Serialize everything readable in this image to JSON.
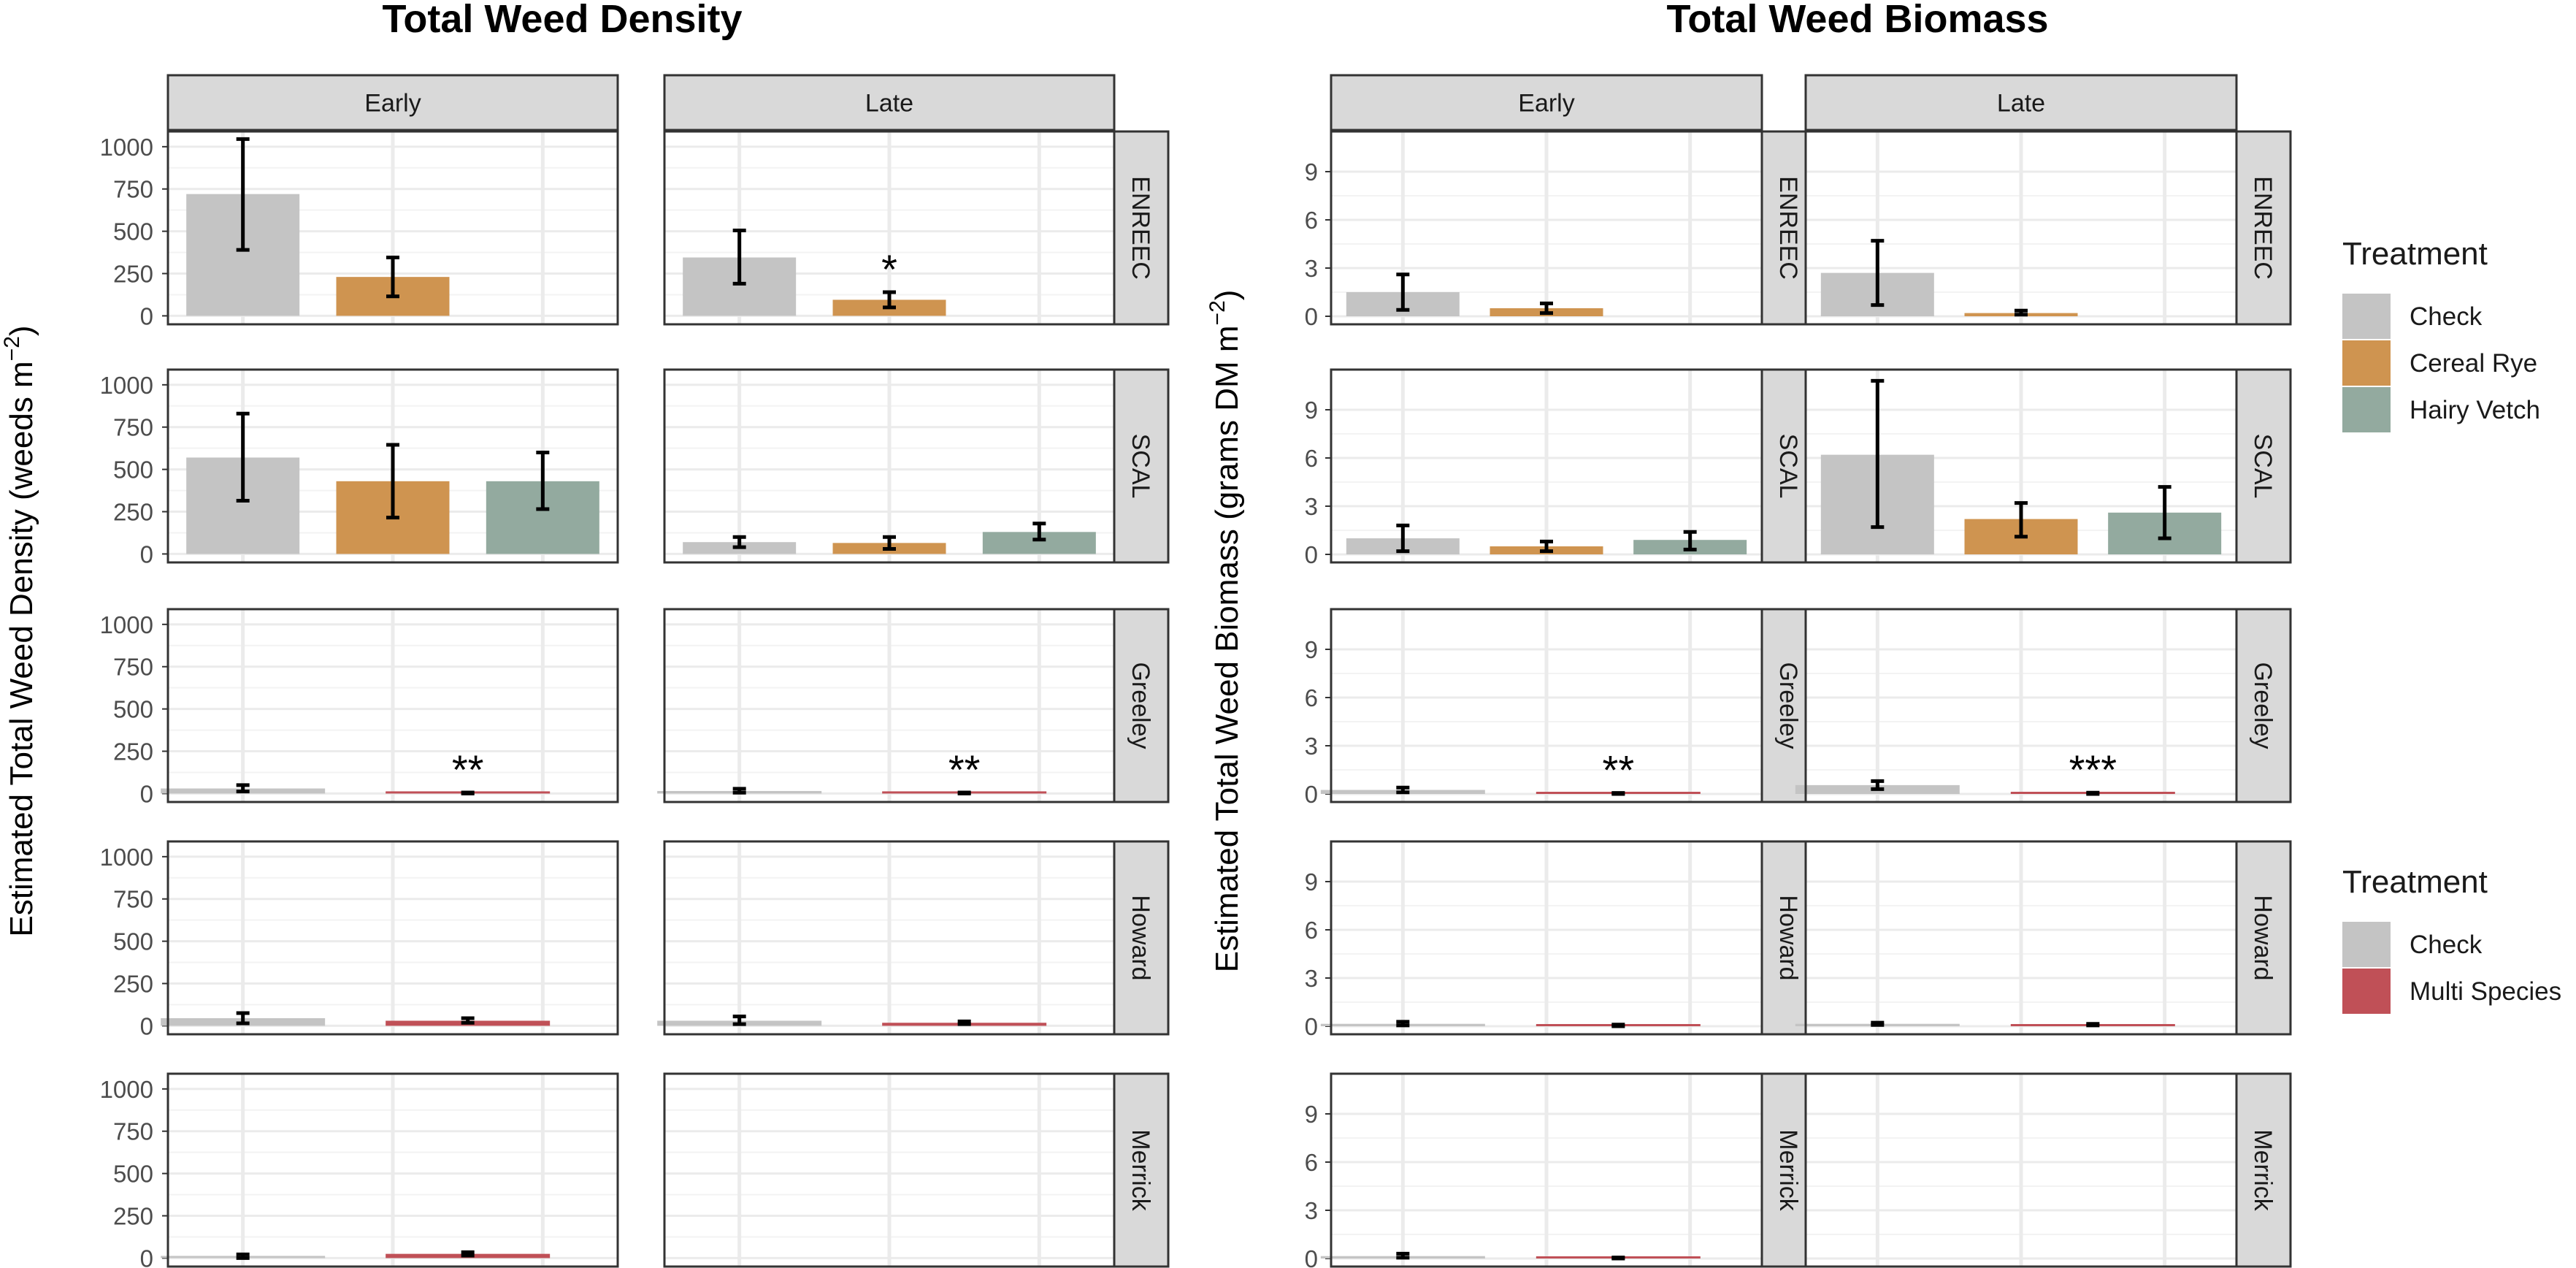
{
  "colors": {
    "Check": "#c4c4c4",
    "Cereal Rye": "#cf9450",
    "Hairy Vetch": "#93aa9f",
    "Multi Species": "#c05057",
    "strip": "#d9d9d9",
    "grid": "#ebebeb"
  },
  "legends": [
    {
      "title": "Treatment",
      "entries": [
        "Check",
        "Cereal Rye",
        "Hairy Vetch"
      ]
    },
    {
      "title": "Treatment",
      "entries": [
        "Check",
        "Multi Species"
      ]
    }
  ],
  "chart_data": [
    {
      "type": "bar",
      "title": "Total Weed Density",
      "ylabel": "Estimated Total Weed Density (weeds m",
      "ylabel_sup": "−2",
      "ylabel_tail": ")",
      "ylim": [
        -50,
        1090
      ],
      "yticks": [
        0,
        250,
        500,
        750,
        1000
      ],
      "columns": [
        "Early",
        "Late"
      ],
      "rows": [
        "ENREEC",
        "SCAL",
        "Greeley",
        "Howard",
        "Merrick"
      ],
      "panels": [
        {
          "row": "ENREEC",
          "col": "Early",
          "bars": [
            {
              "treatment": "Check",
              "value": 720,
              "lo": 390,
              "hi": 1045
            },
            {
              "treatment": "Cereal Rye",
              "value": 230,
              "lo": 115,
              "hi": 345
            }
          ]
        },
        {
          "row": "ENREEC",
          "col": "Late",
          "bars": [
            {
              "treatment": "Check",
              "value": 345,
              "lo": 190,
              "hi": 505
            },
            {
              "treatment": "Cereal Rye",
              "value": 95,
              "lo": 50,
              "hi": 140,
              "sig": "*"
            }
          ]
        },
        {
          "row": "SCAL",
          "col": "Early",
          "bars": [
            {
              "treatment": "Check",
              "value": 570,
              "lo": 315,
              "hi": 830
            },
            {
              "treatment": "Cereal Rye",
              "value": 430,
              "lo": 215,
              "hi": 645
            },
            {
              "treatment": "Hairy Vetch",
              "value": 430,
              "lo": 265,
              "hi": 600
            }
          ]
        },
        {
          "row": "SCAL",
          "col": "Late",
          "bars": [
            {
              "treatment": "Check",
              "value": 70,
              "lo": 40,
              "hi": 100
            },
            {
              "treatment": "Cereal Rye",
              "value": 65,
              "lo": 30,
              "hi": 100
            },
            {
              "treatment": "Hairy Vetch",
              "value": 130,
              "lo": 85,
              "hi": 180
            }
          ]
        },
        {
          "row": "Greeley",
          "col": "Early",
          "bars": [
            {
              "treatment": "Check",
              "value": 30,
              "lo": 12,
              "hi": 50
            },
            {
              "treatment": "Multi Species",
              "value": 3,
              "lo": 0,
              "hi": 6,
              "sig": "**"
            }
          ]
        },
        {
          "row": "Greeley",
          "col": "Late",
          "bars": [
            {
              "treatment": "Check",
              "value": 15,
              "lo": 5,
              "hi": 28
            },
            {
              "treatment": "Multi Species",
              "value": 3,
              "lo": 0,
              "hi": 6,
              "sig": "**"
            }
          ]
        },
        {
          "row": "Howard",
          "col": "Early",
          "bars": [
            {
              "treatment": "Check",
              "value": 45,
              "lo": 15,
              "hi": 75
            },
            {
              "treatment": "Multi Species",
              "value": 30,
              "lo": 18,
              "hi": 45
            }
          ]
        },
        {
          "row": "Howard",
          "col": "Late",
          "bars": [
            {
              "treatment": "Check",
              "value": 30,
              "lo": 10,
              "hi": 55
            },
            {
              "treatment": "Multi Species",
              "value": 18,
              "lo": 10,
              "hi": 26
            }
          ]
        },
        {
          "row": "Merrick",
          "col": "Early",
          "bars": [
            {
              "treatment": "Check",
              "value": 10,
              "lo": 0,
              "hi": 22
            },
            {
              "treatment": "Multi Species",
              "value": 25,
              "lo": 15,
              "hi": 35
            }
          ]
        },
        {
          "row": "Merrick",
          "col": "Late",
          "bars": []
        }
      ]
    },
    {
      "type": "bar",
      "title": "Total Weed Biomass",
      "ylabel": "Estimated Total Weed Biomass (grams DM m",
      "ylabel_sup": "−2",
      "ylabel_tail": ")",
      "ylim": [
        -0.5,
        11.5
      ],
      "yticks": [
        0,
        3,
        6,
        9
      ],
      "columns": [
        "Early",
        "Late"
      ],
      "rows": [
        "ENREEC",
        "SCAL",
        "Greeley",
        "Howard",
        "Merrick"
      ],
      "panels": [
        {
          "row": "ENREEC",
          "col": "Early",
          "bars": [
            {
              "treatment": "Check",
              "value": 1.5,
              "lo": 0.4,
              "hi": 2.6
            },
            {
              "treatment": "Cereal Rye",
              "value": 0.5,
              "lo": 0.2,
              "hi": 0.8
            }
          ]
        },
        {
          "row": "ENREEC",
          "col": "Late",
          "bars": [
            {
              "treatment": "Check",
              "value": 2.7,
              "lo": 0.7,
              "hi": 4.7
            },
            {
              "treatment": "Cereal Rye",
              "value": 0.2,
              "lo": 0.1,
              "hi": 0.35
            }
          ]
        },
        {
          "row": "SCAL",
          "col": "Early",
          "bars": [
            {
              "treatment": "Check",
              "value": 1.0,
              "lo": 0.2,
              "hi": 1.8
            },
            {
              "treatment": "Cereal Rye",
              "value": 0.5,
              "lo": 0.2,
              "hi": 0.8
            },
            {
              "treatment": "Hairy Vetch",
              "value": 0.9,
              "lo": 0.3,
              "hi": 1.4
            }
          ]
        },
        {
          "row": "SCAL",
          "col": "Late",
          "bars": [
            {
              "treatment": "Check",
              "value": 6.2,
              "lo": 1.7,
              "hi": 10.8
            },
            {
              "treatment": "Cereal Rye",
              "value": 2.2,
              "lo": 1.1,
              "hi": 3.2
            },
            {
              "treatment": "Hairy Vetch",
              "value": 2.6,
              "lo": 1.0,
              "hi": 4.2
            }
          ]
        },
        {
          "row": "Greeley",
          "col": "Early",
          "bars": [
            {
              "treatment": "Check",
              "value": 0.25,
              "lo": 0.1,
              "hi": 0.4
            },
            {
              "treatment": "Multi Species",
              "value": 0.03,
              "lo": 0.0,
              "hi": 0.06,
              "sig": "**"
            }
          ]
        },
        {
          "row": "Greeley",
          "col": "Late",
          "bars": [
            {
              "treatment": "Check",
              "value": 0.55,
              "lo": 0.3,
              "hi": 0.8
            },
            {
              "treatment": "Multi Species",
              "value": 0.04,
              "lo": 0.0,
              "hi": 0.08,
              "sig": "***"
            }
          ]
        },
        {
          "row": "Howard",
          "col": "Early",
          "bars": [
            {
              "treatment": "Check",
              "value": 0.15,
              "lo": 0.05,
              "hi": 0.28
            },
            {
              "treatment": "Multi Species",
              "value": 0.05,
              "lo": 0.0,
              "hi": 0.1
            }
          ]
        },
        {
          "row": "Howard",
          "col": "Late",
          "bars": [
            {
              "treatment": "Check",
              "value": 0.15,
              "lo": 0.08,
              "hi": 0.22
            },
            {
              "treatment": "Multi Species",
              "value": 0.1,
              "lo": 0.05,
              "hi": 0.15
            }
          ]
        },
        {
          "row": "Merrick",
          "col": "Early",
          "bars": [
            {
              "treatment": "Check",
              "value": 0.15,
              "lo": 0.05,
              "hi": 0.3
            },
            {
              "treatment": "Multi Species",
              "value": 0.03,
              "lo": 0.0,
              "hi": 0.06
            }
          ]
        },
        {
          "row": "Merrick",
          "col": "Late",
          "bars": []
        }
      ]
    }
  ]
}
